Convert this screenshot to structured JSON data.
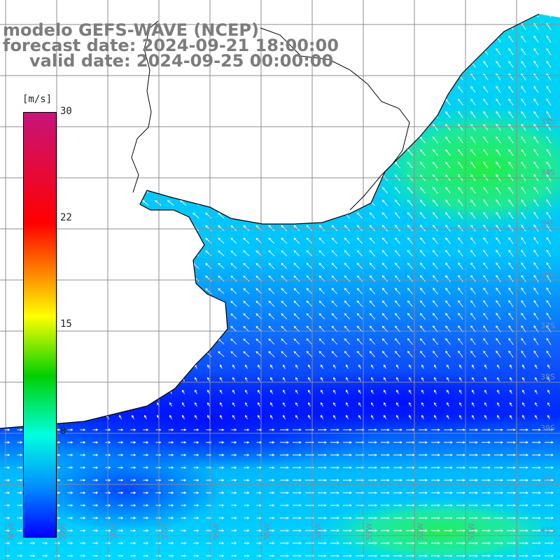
{
  "title": {
    "line1": "modelo GEFS-WAVE (NCEP)",
    "line2": "forecast date: 2024-09-21 18:00:00",
    "line3": "valid date: 2024-09-25 00:00:00"
  },
  "colorbar": {
    "unit": "[m/s]",
    "ticks": [
      "30",
      "22",
      "15",
      "8"
    ],
    "tick_values": [
      30,
      22,
      15,
      8
    ],
    "colors": [
      "#c8147a",
      "#ff0000",
      "#ff8800",
      "#ffff00",
      "#00d000",
      "#00ffe0",
      "#0090ff",
      "#0000ff"
    ]
  },
  "map": {
    "field": "wind speed",
    "land_color": "#ffffff",
    "coast_color": "#000000",
    "grid_color": "#8c8c8c",
    "lat_labels": [
      "33S",
      "34S",
      "35S",
      "36S",
      "37S",
      "38S",
      "39S",
      "40S",
      "41S"
    ],
    "lon_labels": [
      "60W",
      "59W",
      "58W",
      "57W",
      "56W",
      "55W",
      "54W",
      "53W",
      "52W",
      "51W"
    ]
  }
}
